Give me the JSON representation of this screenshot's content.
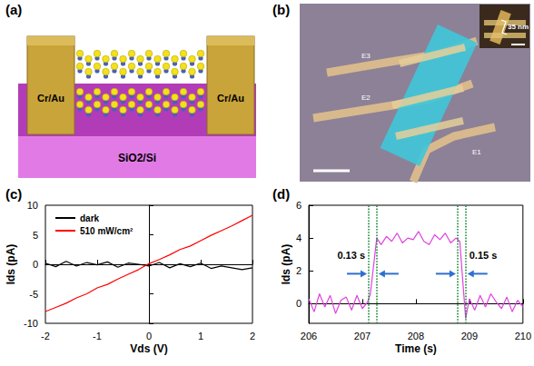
{
  "panel_a": {
    "label": "(a)",
    "electrodes": [
      "Cr/Au",
      "Cr/Au"
    ],
    "substrate": "SiO2/Si"
  },
  "panel_b": {
    "label": "(b)",
    "electrodes": [
      "E1",
      "E2",
      "E3"
    ],
    "inset": "35 nm"
  },
  "chart_data": [
    {
      "type": "line",
      "title": "(c)",
      "xlabel": "Vds (V)",
      "ylabel": "Ids (pA)",
      "x": [
        -2,
        -1.8,
        -1.6,
        -1.4,
        -1.2,
        -1,
        -0.8,
        -0.6,
        -0.4,
        -0.2,
        0,
        0.2,
        0.4,
        0.6,
        0.8,
        1,
        1.2,
        1.4,
        1.6,
        1.8,
        2
      ],
      "series": [
        {
          "name": "dark",
          "color": "#000000",
          "values": [
            0.2,
            -0.4,
            0.5,
            -0.3,
            0.3,
            -0.1,
            0.4,
            -0.5,
            0.2,
            0.0,
            -0.3,
            0.3,
            -0.6,
            0.1,
            -0.4,
            0.2,
            -0.7,
            -0.3,
            -0.6,
            -0.9,
            -0.6
          ]
        },
        {
          "name": "510 mW/cm²",
          "color": "#ff0000",
          "values": [
            -8.0,
            -7.3,
            -6.6,
            -5.7,
            -5.0,
            -4.0,
            -3.4,
            -2.5,
            -1.7,
            -0.9,
            0.1,
            0.8,
            1.6,
            2.5,
            3.1,
            4.0,
            4.9,
            5.7,
            6.5,
            7.4,
            8.3
          ]
        }
      ],
      "xlim": [
        -2,
        2
      ],
      "xticks": [
        -2,
        -1,
        0,
        1,
        2
      ],
      "ylim": [
        -10,
        10
      ],
      "yticks": [
        -10,
        -5,
        0,
        5,
        10
      ],
      "legend": "upper left",
      "grid": false
    },
    {
      "type": "line",
      "title": "(d)",
      "xlabel": "Time (s)",
      "ylabel": "Ids (pA)",
      "x": [
        206.0,
        206.1,
        206.2,
        206.3,
        206.4,
        206.5,
        206.6,
        206.7,
        206.8,
        206.9,
        207.0,
        207.1,
        207.15,
        207.27,
        207.35,
        207.45,
        207.55,
        207.65,
        207.75,
        207.85,
        207.95,
        208.05,
        208.15,
        208.25,
        208.35,
        208.45,
        208.55,
        208.65,
        208.75,
        208.82,
        208.93,
        209.0,
        209.1,
        209.2,
        209.3,
        209.4,
        209.5,
        209.6,
        209.7,
        209.8,
        209.9,
        210.0
      ],
      "series": [
        {
          "color": "#e040e0",
          "values": [
            0.3,
            -0.5,
            0.6,
            -0.2,
            0.5,
            -0.6,
            0.2,
            0.4,
            -0.4,
            0.5,
            -0.3,
            0.1,
            0.6,
            4.0,
            3.6,
            4.1,
            3.8,
            4.3,
            3.7,
            4.0,
            3.9,
            4.4,
            3.8,
            3.6,
            4.2,
            3.9,
            4.3,
            3.7,
            4.0,
            3.8,
            -0.9,
            0.3,
            -0.4,
            0.5,
            -0.2,
            0.6,
            0.1,
            -0.3,
            0.4,
            -0.5,
            0.2,
            -0.2
          ]
        }
      ],
      "annotations": [
        {
          "text": "0.13 s",
          "x": [
            207.12,
            207.27
          ]
        },
        {
          "text": "0.15 s",
          "x": [
            208.78,
            208.93
          ]
        }
      ],
      "xlim": [
        206,
        210
      ],
      "xticks": [
        206,
        207,
        208,
        209,
        210
      ],
      "ylim": [
        -1.2,
        6
      ],
      "yticks": [
        0,
        2,
        4,
        6
      ],
      "grid": false
    }
  ]
}
